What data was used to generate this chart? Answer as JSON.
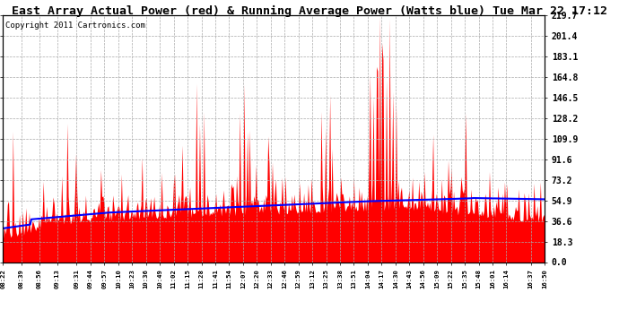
{
  "title": "East Array Actual Power (red) & Running Average Power (Watts blue) Tue Mar 22 17:12",
  "copyright": "Copyright 2011 Cartronics.com",
  "ylabel_right": [
    "219.7",
    "201.4",
    "183.1",
    "164.8",
    "146.5",
    "128.2",
    "109.9",
    "91.6",
    "73.2",
    "54.9",
    "36.6",
    "18.3",
    "0.0"
  ],
  "ytick_vals": [
    219.7,
    201.4,
    183.1,
    164.8,
    146.5,
    128.2,
    109.9,
    91.6,
    73.2,
    54.9,
    36.6,
    18.3,
    0.0
  ],
  "ymax": 219.7,
  "ymin": 0.0,
  "background_color": "#ffffff",
  "plot_bg_color": "#ffffff",
  "bar_color": "#ff0000",
  "avg_color": "#0000ff",
  "grid_color": "#aaaaaa",
  "title_fontsize": 9.5,
  "copyright_fontsize": 6.5,
  "x_labels": [
    "08:22",
    "08:39",
    "08:56",
    "09:13",
    "09:31",
    "09:44",
    "09:57",
    "10:10",
    "10:23",
    "10:36",
    "10:49",
    "11:02",
    "11:15",
    "11:28",
    "11:41",
    "11:54",
    "12:07",
    "12:20",
    "12:33",
    "12:46",
    "12:59",
    "13:12",
    "13:25",
    "13:38",
    "13:51",
    "14:04",
    "14:17",
    "14:30",
    "14:43",
    "14:56",
    "15:09",
    "15:22",
    "15:35",
    "15:48",
    "16:01",
    "16:14",
    "16:37",
    "16:50"
  ],
  "seed": 7
}
